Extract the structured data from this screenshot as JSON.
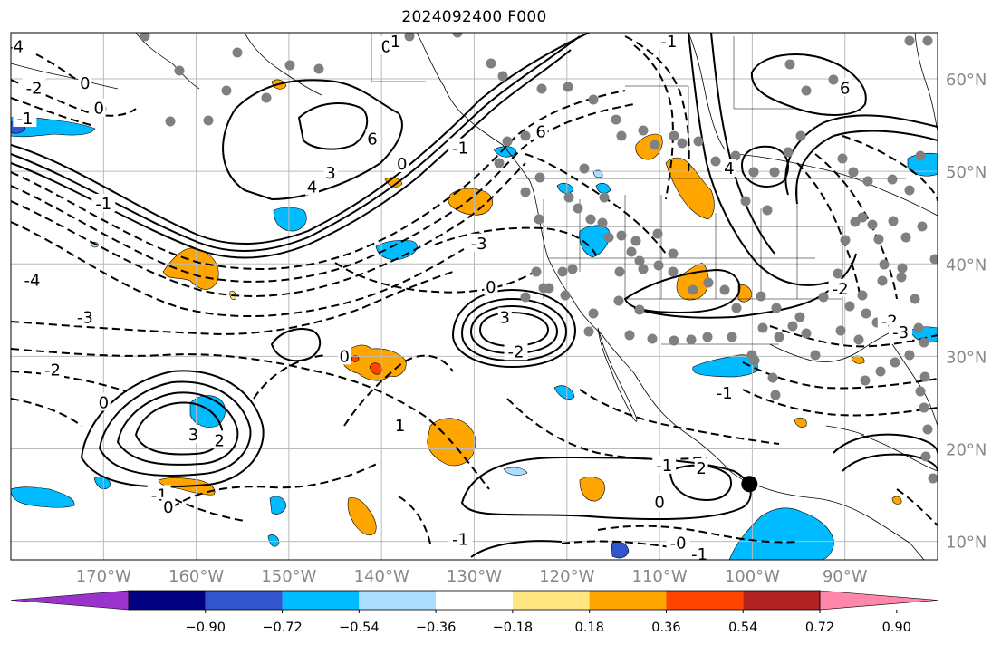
{
  "title": "2024092400 F000",
  "map": {
    "lon_range": [
      -180,
      -80
    ],
    "lat_range": [
      8,
      65
    ],
    "lon_ticks": [
      {
        "lon": -170,
        "label": "170°W"
      },
      {
        "lon": -160,
        "label": "160°W"
      },
      {
        "lon": -150,
        "label": "150°W"
      },
      {
        "lon": -140,
        "label": "140°W"
      },
      {
        "lon": -130,
        "label": "130°W"
      },
      {
        "lon": -120,
        "label": "120°W"
      },
      {
        "lon": -110,
        "label": "110°W"
      },
      {
        "lon": -100,
        "label": "100°W"
      },
      {
        "lon": -90,
        "label": "90°W"
      }
    ],
    "lat_ticks": [
      {
        "lat": 60,
        "label": "60°N"
      },
      {
        "lat": 50,
        "label": "50°N"
      },
      {
        "lat": 40,
        "label": "40°N"
      },
      {
        "lat": 30,
        "label": "30°N"
      },
      {
        "lat": 20,
        "label": "20°N"
      },
      {
        "lat": 10,
        "label": "10°N"
      }
    ],
    "contour_labels": [
      {
        "text": "0",
        "lon": -172,
        "lat": 59.5
      },
      {
        "text": "-2",
        "lon": -177.5,
        "lat": 59
      },
      {
        "text": "-1",
        "lon": -178.5,
        "lat": 55.7
      },
      {
        "text": "0",
        "lon": -170.5,
        "lat": 56.8
      },
      {
        "text": "-4",
        "lon": -179.5,
        "lat": 63.5
      },
      {
        "text": "6",
        "lon": -141,
        "lat": 53.5
      },
      {
        "text": "4",
        "lon": -147.5,
        "lat": 48.3
      },
      {
        "text": "3",
        "lon": -145.5,
        "lat": 49.8
      },
      {
        "text": "0",
        "lon": -137.8,
        "lat": 50.8
      },
      {
        "text": "-1",
        "lon": -131.5,
        "lat": 52.5
      },
      {
        "text": "0",
        "lon": -139.5,
        "lat": 63.5
      },
      {
        "text": "1",
        "lon": -138.5,
        "lat": 64
      },
      {
        "text": "-1",
        "lon": -109,
        "lat": 64
      },
      {
        "text": "6",
        "lon": -122.8,
        "lat": 54.3
      },
      {
        "text": "4",
        "lon": -102.5,
        "lat": 50.3
      },
      {
        "text": "6",
        "lon": -90,
        "lat": 59
      },
      {
        "text": "-1",
        "lon": -170,
        "lat": 46.5
      },
      {
        "text": "-3",
        "lon": -129.5,
        "lat": 42.2
      },
      {
        "text": "-4",
        "lon": -177.7,
        "lat": 38.2
      },
      {
        "text": "-3",
        "lon": -172,
        "lat": 34.2
      },
      {
        "text": "0",
        "lon": -128.2,
        "lat": 37.5
      },
      {
        "text": "3",
        "lon": -126.7,
        "lat": 34.2
      },
      {
        "text": "-2",
        "lon": -125.5,
        "lat": 30.5
      },
      {
        "text": "0",
        "lon": -144,
        "lat": 30
      },
      {
        "text": "-2",
        "lon": -175.5,
        "lat": 28.5
      },
      {
        "text": "0",
        "lon": -170,
        "lat": 25
      },
      {
        "text": "3",
        "lon": -160.3,
        "lat": 21.5
      },
      {
        "text": "2",
        "lon": -157.5,
        "lat": 20.9
      },
      {
        "text": "-1",
        "lon": -164,
        "lat": 15
      },
      {
        "text": "0",
        "lon": -163,
        "lat": 13.7
      },
      {
        "text": "-1",
        "lon": -131.5,
        "lat": 10.2
      },
      {
        "text": "1",
        "lon": -138,
        "lat": 22.5
      },
      {
        "text": "-1",
        "lon": -103,
        "lat": 26
      },
      {
        "text": "-1",
        "lon": -109.5,
        "lat": 18.2
      },
      {
        "text": "2",
        "lon": -105.5,
        "lat": 17.9
      },
      {
        "text": "0",
        "lon": -110,
        "lat": 14.2
      },
      {
        "text": "-0",
        "lon": -108,
        "lat": 9.8
      },
      {
        "text": "-1",
        "lon": -105.7,
        "lat": 8.6
      },
      {
        "text": "-2",
        "lon": -90.5,
        "lat": 37.3
      },
      {
        "text": "-2",
        "lon": -85.2,
        "lat": 33.8
      },
      {
        "text": "-3",
        "lon": -84,
        "lat": 32.6
      }
    ]
  },
  "colorbar": {
    "colors": [
      "#9933cc",
      "#000080",
      "#3355cc",
      "#00bbff",
      "#aaddff",
      "#ffffff",
      "#ffe680",
      "#ffa500",
      "#ff4500",
      "#b22222",
      "#ff88aa"
    ],
    "tick_labels": [
      "−0.90",
      "−0.72",
      "−0.54",
      "−0.36",
      "−0.18",
      "0.18",
      "0.36",
      "0.54",
      "0.72",
      "0.90"
    ]
  },
  "marker": {
    "lon": -100.3,
    "lat": 16.2
  }
}
